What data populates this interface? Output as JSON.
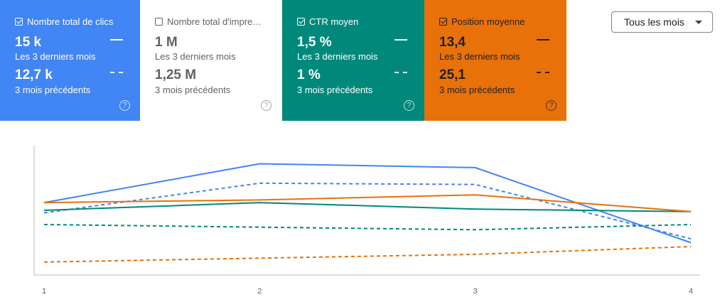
{
  "cards": [
    {
      "id": "clicks",
      "title": "Nombre total de clics",
      "checked": true,
      "theme": "blue",
      "current_value": "15 k",
      "current_label": "Les 3 derniers mois",
      "previous_value": "12,7 k",
      "previous_label": "3 mois précédents",
      "help": "?"
    },
    {
      "id": "impressions",
      "title": "Nombre total d'impre…",
      "checked": false,
      "theme": "white",
      "current_value": "1 M",
      "current_label": "Les 3 derniers mois",
      "previous_value": "1,25 M",
      "previous_label": "3 mois précédents",
      "help": "?"
    },
    {
      "id": "ctr",
      "title": "CTR moyen",
      "checked": true,
      "theme": "teal",
      "current_value": "1,5 %",
      "current_label": "Les 3 derniers mois",
      "previous_value": "1 %",
      "previous_label": "3 mois précédents",
      "help": "?"
    },
    {
      "id": "position",
      "title": "Position moyenne",
      "checked": true,
      "theme": "orange",
      "current_value": "13,4",
      "current_label": "Les 3 derniers mois",
      "previous_value": "25,1",
      "previous_label": "3 mois précédents",
      "help": "?"
    }
  ],
  "dropdown": {
    "label": "Tous les mois"
  },
  "colors": {
    "blue": "#4285f4",
    "teal": "#00897b",
    "orange": "#e8710a"
  },
  "chart_data": {
    "type": "line",
    "x": [
      "1",
      "2",
      "3",
      "4"
    ],
    "ylim": [
      0,
      100
    ],
    "grid": false,
    "series": [
      {
        "metric": "clicks",
        "period": "current",
        "color": "#4285f4",
        "dashed": false,
        "values": [
          56,
          86,
          83,
          25
        ]
      },
      {
        "metric": "clicks",
        "period": "previous",
        "color": "#4285f4",
        "dashed": true,
        "values": [
          48,
          71,
          70,
          28
        ]
      },
      {
        "metric": "ctr",
        "period": "current",
        "color": "#00897b",
        "dashed": false,
        "values": [
          50,
          56,
          51,
          49
        ]
      },
      {
        "metric": "ctr",
        "period": "previous",
        "color": "#00897b",
        "dashed": true,
        "values": [
          39,
          37,
          35,
          39
        ]
      },
      {
        "metric": "position",
        "period": "current",
        "color": "#e8710a",
        "dashed": false,
        "values": [
          56,
          58,
          62,
          49
        ]
      },
      {
        "metric": "position",
        "period": "previous",
        "color": "#e8710a",
        "dashed": true,
        "values": [
          10,
          13,
          16,
          22
        ]
      }
    ]
  }
}
